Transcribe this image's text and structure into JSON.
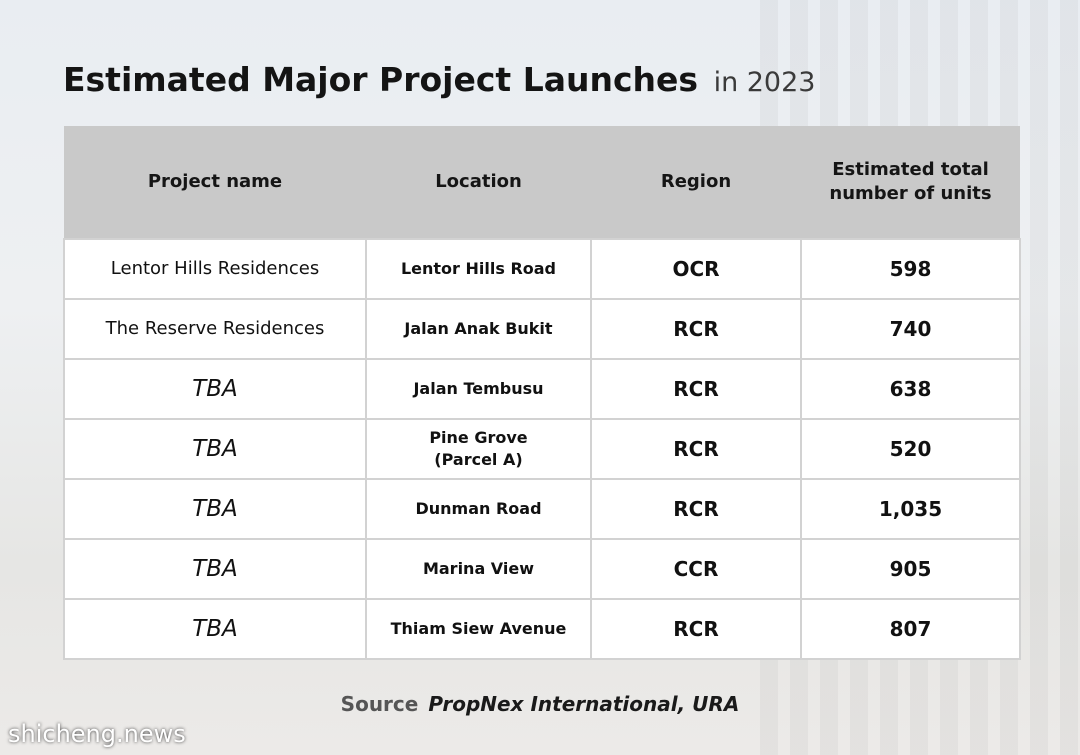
{
  "header": {
    "title": "Estimated Major Project Launches",
    "subtitle": "in 2023"
  },
  "table": {
    "columns": [
      "Project name",
      "Location",
      "Region",
      "Estimated total number of units"
    ],
    "rows": [
      [
        "Lentor Hills Residences",
        "Lentor Hills Road",
        "OCR",
        "598"
      ],
      [
        "The Reserve Residences",
        "Jalan Anak Bukit",
        "RCR",
        "740"
      ],
      [
        "TBA",
        "Jalan Tembusu",
        "RCR",
        "638"
      ],
      [
        "TBA",
        "Pine Grove\n(Parcel A)",
        "RCR",
        "520"
      ],
      [
        "TBA",
        "Dunman Road",
        "RCR",
        "1,035"
      ],
      [
        "TBA",
        "Marina View",
        "CCR",
        "905"
      ],
      [
        "TBA",
        "Thiam Siew Avenue",
        "RCR",
        "807"
      ]
    ]
  },
  "footer": {
    "source_label": "Source",
    "source": "PropNex International, URA"
  },
  "watermark": "shicheng.news"
}
